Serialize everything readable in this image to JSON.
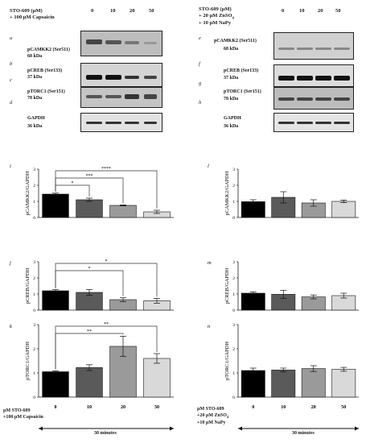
{
  "left_header": {
    "treatment_line1": "STO-609 (µM)",
    "treatment_line2": "+ 100 µM Capsaicin",
    "doses": [
      "0",
      "10",
      "20",
      "50"
    ]
  },
  "right_header": {
    "treatment_line1": "STO-609 (µM)",
    "treatment_line2": "+ 20 µM ZnSO",
    "treatment_line2_sub": "4",
    "treatment_line3": "+ 10 µM NaPy",
    "doses": [
      "0",
      "10",
      "20",
      "50"
    ]
  },
  "blots": {
    "left": [
      {
        "letter": "a",
        "protein": "pCAMKK2 (Ser511)",
        "mass": "68 kDa"
      },
      {
        "letter": "b",
        "protein": "",
        "mass": ""
      },
      {
        "letter": "c",
        "protein": "pCREB (Ser133)",
        "mass": "37 kDa"
      },
      {
        "letter": "d",
        "protein": "pTORC1 (Ser151)",
        "mass": "78 kDa"
      },
      {
        "letter": "",
        "protein": "GAPDH",
        "mass": "36 kDa"
      }
    ],
    "right": [
      {
        "letter": "e",
        "protein": "pCAMKK2 (Ser511)",
        "mass": "68 kDa"
      },
      {
        "letter": "f",
        "protein": "",
        "mass": ""
      },
      {
        "letter": "g",
        "protein": "pCREB (Ser133)",
        "mass": "37 kDa"
      },
      {
        "letter": "h",
        "protein": "pTORC1 (Ser151)",
        "mass": "78 kDa"
      },
      {
        "letter": "",
        "protein": "GAPDH",
        "mass": "36 kDa"
      }
    ]
  },
  "bottom_left": {
    "line1": "µM STO-609",
    "line2": "+100 µM Capsaicin",
    "duration": "30 minutes"
  },
  "bottom_right": {
    "line1": "µM STO-609",
    "line2": "+20 µM ZnSO",
    "line2_sub": "4",
    "line3": "+10 µM NaPy",
    "duration": "30 minutes"
  },
  "colors": {
    "bars": [
      "#000000",
      "#5a5a5a",
      "#9a9a9a",
      "#d9d9d9"
    ],
    "axis": "#222222",
    "bracket": "#333333"
  },
  "chart_data": [
    {
      "panel": "i",
      "type": "bar",
      "ylabel": "pCAMKK2/GAPDH",
      "categories": [
        "0",
        "10",
        "20",
        "50"
      ],
      "values": [
        1.45,
        1.1,
        0.75,
        0.35
      ],
      "errors": [
        0.06,
        0.1,
        0.03,
        0.1
      ],
      "ylim": [
        0,
        3
      ],
      "yticks": [
        "0",
        "1",
        "2",
        "3"
      ],
      "significance": [
        {
          "from": 0,
          "to": 1,
          "label": "*"
        },
        {
          "from": 0,
          "to": 2,
          "label": "***"
        },
        {
          "from": 0,
          "to": 3,
          "label": "****"
        }
      ]
    },
    {
      "panel": "j",
      "type": "bar",
      "ylabel": "pCREB/GAPDH",
      "categories": [
        "0",
        "10",
        "20",
        "50"
      ],
      "values": [
        1.2,
        1.1,
        0.65,
        0.58
      ],
      "errors": [
        0.07,
        0.18,
        0.12,
        0.15
      ],
      "ylim": [
        0,
        3
      ],
      "yticks": [
        "0",
        "1",
        "2",
        "3"
      ],
      "significance": [
        {
          "from": 0,
          "to": 2,
          "label": "*"
        },
        {
          "from": 0,
          "to": 3,
          "label": "*"
        }
      ]
    },
    {
      "panel": "k",
      "type": "bar",
      "ylabel": "pTORC1/GAPDH",
      "categories": [
        "0",
        "10",
        "20",
        "50"
      ],
      "values": [
        1.05,
        1.22,
        2.1,
        1.6
      ],
      "errors": [
        0.04,
        0.12,
        0.42,
        0.2
      ],
      "ylim": [
        0,
        3
      ],
      "yticks": [
        "0",
        "1",
        "2",
        "3"
      ],
      "significance": [
        {
          "from": 0,
          "to": 2,
          "label": "**"
        },
        {
          "from": 0,
          "to": 3,
          "label": "**"
        }
      ]
    },
    {
      "panel": "l",
      "type": "bar",
      "ylabel": "pCAMKK2/GAPDH",
      "categories": [
        "0",
        "10",
        "20",
        "50"
      ],
      "values": [
        0.98,
        1.25,
        0.9,
        1.0
      ],
      "errors": [
        0.12,
        0.35,
        0.2,
        0.08
      ],
      "ylim": [
        0,
        3
      ],
      "yticks": [
        "0",
        "1",
        "2",
        "3"
      ],
      "significance": []
    },
    {
      "panel": "m",
      "type": "bar",
      "ylabel": "pCREB/GAPDH",
      "categories": [
        "0",
        "10",
        "20",
        "50"
      ],
      "values": [
        1.05,
        0.98,
        0.82,
        0.9
      ],
      "errors": [
        0.08,
        0.25,
        0.12,
        0.15
      ],
      "ylim": [
        0,
        3
      ],
      "yticks": [
        "0",
        "1",
        "2",
        "3"
      ],
      "significance": []
    },
    {
      "panel": "n",
      "type": "bar",
      "ylabel": "pTORC1/GAPDH",
      "categories": [
        "0",
        "10",
        "20",
        "50"
      ],
      "values": [
        1.1,
        1.12,
        1.18,
        1.15
      ],
      "errors": [
        0.1,
        0.08,
        0.12,
        0.08
      ],
      "ylim": [
        0,
        3
      ],
      "yticks": [
        "0",
        "1",
        "2",
        "3"
      ],
      "significance": []
    }
  ]
}
